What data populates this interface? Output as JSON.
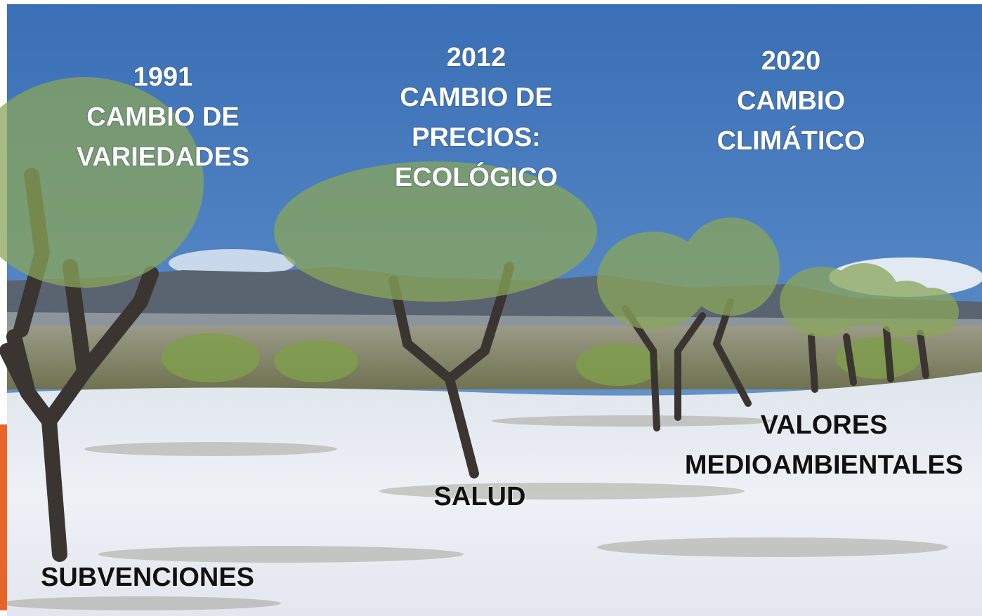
{
  "top_labels": [
    {
      "year": "1991",
      "text": [
        "CAMBIO DE",
        "VARIEDADES"
      ]
    },
    {
      "year": "2012",
      "text": [
        "CAMBIO DE",
        "PRECIOS:",
        "ECOLÓGICO"
      ]
    },
    {
      "year": "2020",
      "text": [
        "CAMBIO",
        "CLIMÁTICO"
      ]
    }
  ],
  "bottom_labels": [
    [
      "SUBVENCIONES"
    ],
    [
      "SALUD"
    ],
    [
      "VALORES",
      "MEDIOAMBIENTALES"
    ]
  ]
}
